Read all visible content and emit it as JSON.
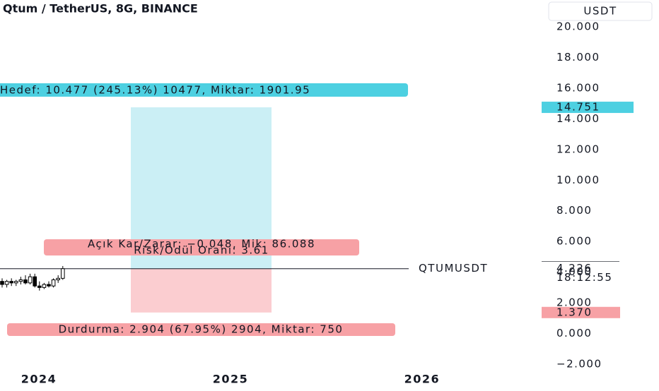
{
  "header": {
    "title": "Qtum / TetherUS, 8G, BINANCE",
    "currency_button": "USDT"
  },
  "chart_data": {
    "type": "candlestick",
    "symbol": "QTUMUSDT",
    "last_price": {
      "value": 4.226,
      "label": "4.226"
    },
    "countdown": "18:12:55",
    "open": [
      3.4,
      3.2,
      3.4,
      3.3,
      3.4,
      3.5,
      3.3,
      3.7,
      3.1,
      3.0,
      3.2,
      3.1,
      3.5,
      3.6
    ],
    "high": [
      3.6,
      3.5,
      3.6,
      3.5,
      3.7,
      3.8,
      3.9,
      3.9,
      3.4,
      3.3,
      3.4,
      3.6,
      3.8,
      4.4
    ],
    "low": [
      3.0,
      3.0,
      3.1,
      3.1,
      3.2,
      3.2,
      3.2,
      3.0,
      2.8,
      2.9,
      3.0,
      3.0,
      3.3,
      3.5
    ],
    "close": [
      3.2,
      3.4,
      3.3,
      3.4,
      3.5,
      3.3,
      3.7,
      3.1,
      3.0,
      3.2,
      3.1,
      3.5,
      3.6,
      4.226
    ],
    "up_color": "#ffffff",
    "down_color": "#000000",
    "ylim": [
      -3.565,
      21.75
    ],
    "yticks": [
      {
        "value": -2,
        "label": "−2.000"
      },
      {
        "value": 0,
        "label": "0.000"
      },
      {
        "value": 2,
        "label": "2.000"
      },
      {
        "value": 4,
        "label": "4.000"
      },
      {
        "value": 6,
        "label": "6.000"
      },
      {
        "value": 8,
        "label": "8.000"
      },
      {
        "value": 10,
        "label": "10.000"
      },
      {
        "value": 12,
        "label": "12.000"
      },
      {
        "value": 14,
        "label": "14.000"
      },
      {
        "value": 16,
        "label": "16.000"
      },
      {
        "value": 18,
        "label": "18.000"
      },
      {
        "value": 20,
        "label": "20.000"
      }
    ],
    "xlim": [
      2023.797,
      2026.624
    ],
    "xticks": [
      2024,
      2025,
      2026
    ],
    "position": {
      "target_price": {
        "value": 14.751,
        "label": "14.751"
      },
      "stop_price": {
        "value": 1.37,
        "label": "1.370"
      },
      "target_label": "Hedef: 10.477 (245.13%) 10477, Miktar: 1901.95",
      "stop_label": "Durdurma: 2.904 (67.95%) 2904, Miktar: 750",
      "pnl_label": "Açık Kar/Zarar: −0.048, Mik: 86.088",
      "risk_label": "Risk/Ödül Oranı: 3.61",
      "target_color": "#4dd0e1",
      "target_zone_color": "#cbeff5",
      "stop_color": "#f7a1a5",
      "stop_zone_color": "#fbcdd0"
    }
  }
}
